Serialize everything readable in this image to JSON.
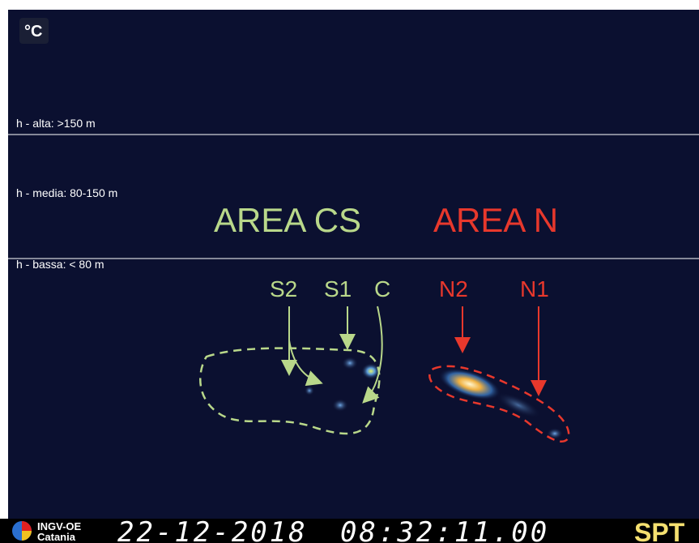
{
  "scale_label": "°C",
  "height_bands": [
    {
      "label": "h - alta: >150 m"
    },
    {
      "label": "h - media: 80-150 m"
    },
    {
      "label": "h - bassa: < 80 m"
    }
  ],
  "areas": [
    {
      "label": "AREA CS",
      "vents": [
        "S2",
        "S1",
        "C"
      ]
    },
    {
      "label": "AREA N",
      "vents": [
        "N2",
        "N1"
      ]
    }
  ],
  "footer": {
    "institute": "INGV-OE",
    "city": "Catania",
    "date": "22-12-2018",
    "time": "08:32:11.00",
    "station": "SPT"
  }
}
